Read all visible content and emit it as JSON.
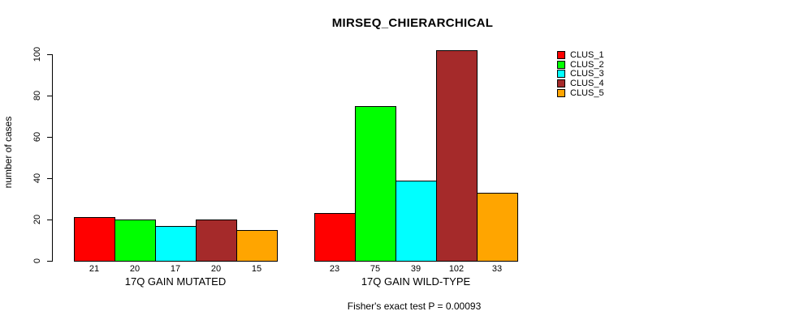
{
  "title": "MIRSEQ_CHIERARCHICAL",
  "footer": "Fisher's exact test P = 0.00093",
  "chart_data": {
    "type": "bar",
    "title": "MIRSEQ_CHIERARCHICAL",
    "ylabel": "number of cases",
    "xlabel": "",
    "ylim": [
      0,
      100
    ],
    "yticks": [
      0,
      20,
      40,
      60,
      80,
      100
    ],
    "grid": false,
    "legend_position": "right-outside-top",
    "background": "#FFFFFF",
    "axis_color": "#000000",
    "groups": [
      {
        "label": "17Q GAIN MUTATED",
        "values": [
          21,
          20,
          17,
          20,
          15
        ]
      },
      {
        "label": "17Q GAIN WILD-TYPE",
        "values": [
          23,
          75,
          39,
          102,
          33
        ]
      }
    ],
    "series": [
      {
        "name": "CLUS_1",
        "color": "#FF0000",
        "values": [
          21,
          23
        ]
      },
      {
        "name": "CLUS_2",
        "color": "#00FF00",
        "values": [
          20,
          75
        ]
      },
      {
        "name": "CLUS_3",
        "color": "#00FFFF",
        "values": [
          17,
          39
        ]
      },
      {
        "name": "CLUS_4",
        "color": "#A52A2A",
        "values": [
          20,
          102
        ]
      },
      {
        "name": "CLUS_5",
        "color": "#FFA500",
        "values": [
          15,
          33
        ]
      }
    ],
    "bar_value_labels": [
      [
        21,
        20,
        17,
        20,
        15
      ],
      [
        23,
        75,
        39,
        102,
        33
      ]
    ],
    "annotation": "Fisher's exact test P = 0.00093"
  }
}
